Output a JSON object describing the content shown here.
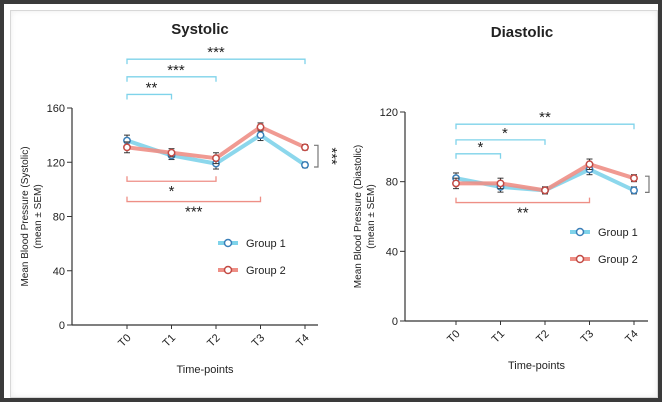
{
  "colors": {
    "group1": "#7fd3ea",
    "group2": "#ee8f86",
    "marker_edge1": "#3a7fb8",
    "marker_edge2": "#c24a44",
    "axis": "#333333",
    "bracket_gray": "#777777"
  },
  "chart_data": [
    {
      "type": "line",
      "title": "Systolic",
      "xlabel": "Time-points",
      "ylabel": "Mean Blood Pressure (Systolic)",
      "ylabel2": "(mean ± SEM)",
      "categories": [
        "T0",
        "T1",
        "T2",
        "T3",
        "T4"
      ],
      "ylim": [
        0,
        160
      ],
      "yticks": [
        "0",
        "40",
        "80",
        "120",
        "160"
      ],
      "ytick_values": [
        0,
        40,
        80,
        120,
        160
      ],
      "legend_placement": "center-right",
      "series": [
        {
          "name": "Group 1",
          "values": [
            136,
            125,
            119,
            140,
            118
          ],
          "sem": [
            4,
            3,
            4,
            4,
            2
          ]
        },
        {
          "name": "Group 2",
          "values": [
            131,
            127,
            123,
            146,
            131
          ],
          "sem": [
            4,
            3,
            4,
            3,
            2
          ]
        }
      ],
      "annotations": [
        {
          "label": "**",
          "series": "Group 1",
          "from": "T0",
          "to": "T1",
          "level": 170
        },
        {
          "label": "***",
          "series": "Group 1",
          "from": "T0",
          "to": "T2",
          "level": 183
        },
        {
          "label": "***",
          "series": "Group 1",
          "from": "T0",
          "to": "T4",
          "level": 196
        },
        {
          "label": "*",
          "series": "Group 2",
          "from": "T0",
          "to": "T2",
          "level": 106
        },
        {
          "label": "***",
          "series": "Group 2",
          "from": "T0",
          "to": "T3",
          "level": 91
        },
        {
          "label": "***",
          "series": "side",
          "from": "T4",
          "to": "T4",
          "level": 0
        }
      ]
    },
    {
      "type": "line",
      "title": "Diastolic",
      "xlabel": "Time-points",
      "ylabel": "Mean Blood Pressure (Diastolic)",
      "ylabel2": "(mean ± SEM)",
      "categories": [
        "T0",
        "T1",
        "T2",
        "T3",
        "T4"
      ],
      "ylim": [
        0,
        120
      ],
      "yticks": [
        "0",
        "40",
        "80",
        "120"
      ],
      "ytick_values": [
        0,
        40,
        80,
        120
      ],
      "legend_placement": "center-right",
      "series": [
        {
          "name": "Group 1",
          "values": [
            82,
            77,
            75,
            87,
            75
          ],
          "sem": [
            3,
            3,
            2,
            3,
            2
          ]
        },
        {
          "name": "Group 2",
          "values": [
            79,
            79,
            75,
            90,
            82
          ],
          "sem": [
            3,
            3,
            2,
            3,
            2
          ]
        }
      ],
      "annotations": [
        {
          "label": "*",
          "series": "Group 1",
          "from": "T0",
          "to": "T1",
          "level": 96
        },
        {
          "label": "*",
          "series": "Group 1",
          "from": "T0",
          "to": "T2",
          "level": 104
        },
        {
          "label": "**",
          "series": "Group 1",
          "from": "T0",
          "to": "T4",
          "level": 113
        },
        {
          "label": "**",
          "series": "Group 2",
          "from": "T0",
          "to": "T3",
          "level": 68
        },
        {
          "label": "**",
          "series": "side",
          "from": "T4",
          "to": "T4",
          "level": 0
        }
      ]
    }
  ]
}
